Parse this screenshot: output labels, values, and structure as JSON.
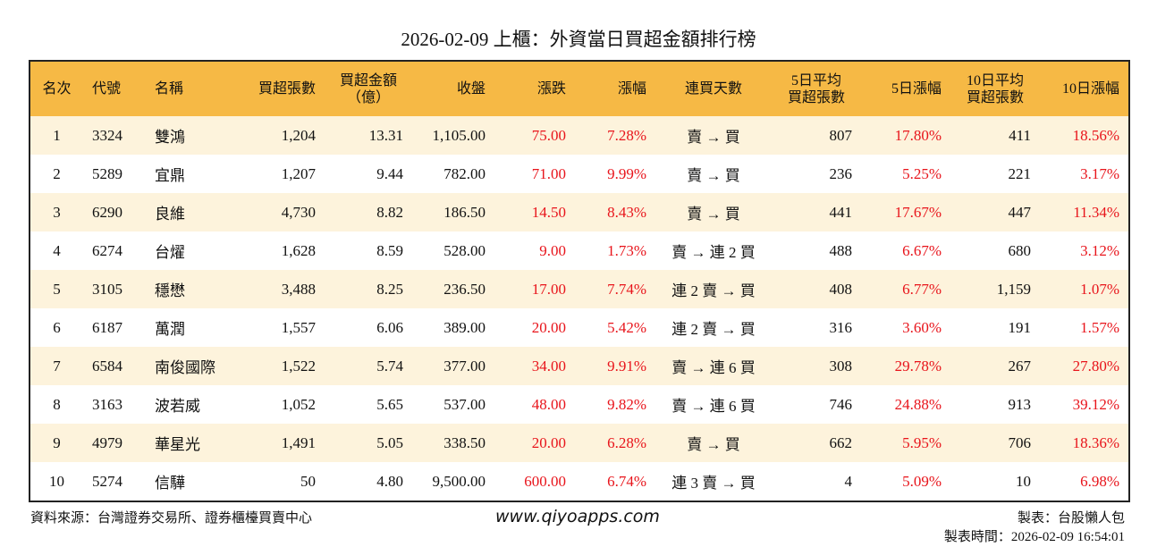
{
  "title": "2026-02-09 上櫃：外資當日買超金額排行榜",
  "table": {
    "header": [
      "名次",
      "代號",
      "名稱",
      "買超張數",
      "買超金額\n（億）",
      "收盤",
      "漲跌",
      "漲幅",
      "連買天數",
      "5日平均\n買超張數",
      "5日漲幅",
      "10日平均\n買超張數",
      "10日漲幅"
    ],
    "rows": [
      [
        "1",
        "3324",
        "雙鴻",
        "1,204",
        "13.31",
        "1,105.00",
        "75.00",
        "7.28%",
        "賣 → 買",
        "807",
        "17.80%",
        "411",
        "18.56%"
      ],
      [
        "2",
        "5289",
        "宜鼎",
        "1,207",
        "9.44",
        "782.00",
        "71.00",
        "9.99%",
        "賣 → 買",
        "236",
        "5.25%",
        "221",
        "3.17%"
      ],
      [
        "3",
        "6290",
        "良維",
        "4,730",
        "8.82",
        "186.50",
        "14.50",
        "8.43%",
        "賣 → 買",
        "441",
        "17.67%",
        "447",
        "11.34%"
      ],
      [
        "4",
        "6274",
        "台燿",
        "1,628",
        "8.59",
        "528.00",
        "9.00",
        "1.73%",
        "賣 → 連 2 買",
        "488",
        "6.67%",
        "680",
        "3.12%"
      ],
      [
        "5",
        "3105",
        "穩懋",
        "3,488",
        "8.25",
        "236.50",
        "17.00",
        "7.74%",
        "連 2 賣 → 買",
        "408",
        "6.77%",
        "1,159",
        "1.07%"
      ],
      [
        "6",
        "6187",
        "萬潤",
        "1,557",
        "6.06",
        "389.00",
        "20.00",
        "5.42%",
        "連 2 賣 → 買",
        "316",
        "3.60%",
        "191",
        "1.57%"
      ],
      [
        "7",
        "6584",
        "南俊國際",
        "1,522",
        "5.74",
        "377.00",
        "34.00",
        "9.91%",
        "賣 → 連 6 買",
        "308",
        "29.78%",
        "267",
        "27.80%"
      ],
      [
        "8",
        "3163",
        "波若威",
        "1,052",
        "5.65",
        "537.00",
        "48.00",
        "9.82%",
        "賣 → 連 6 買",
        "746",
        "24.88%",
        "913",
        "39.12%"
      ],
      [
        "9",
        "4979",
        "華星光",
        "1,491",
        "5.05",
        "338.50",
        "20.00",
        "6.28%",
        "賣 → 買",
        "662",
        "5.95%",
        "706",
        "18.36%"
      ],
      [
        "10",
        "5274",
        "信驊",
        "50",
        "4.80",
        "9,500.00",
        "600.00",
        "6.74%",
        "連 3 賣 → 買",
        "4",
        "5.09%",
        "10",
        "6.98%"
      ]
    ]
  },
  "footer": {
    "source": "資料來源：台灣證券交易所、證券櫃檯買賣中心",
    "website": "www.qiyoapps.com",
    "author": "製表：台股懶人包",
    "time": "製表時間：2026-02-09 16:54:01"
  }
}
